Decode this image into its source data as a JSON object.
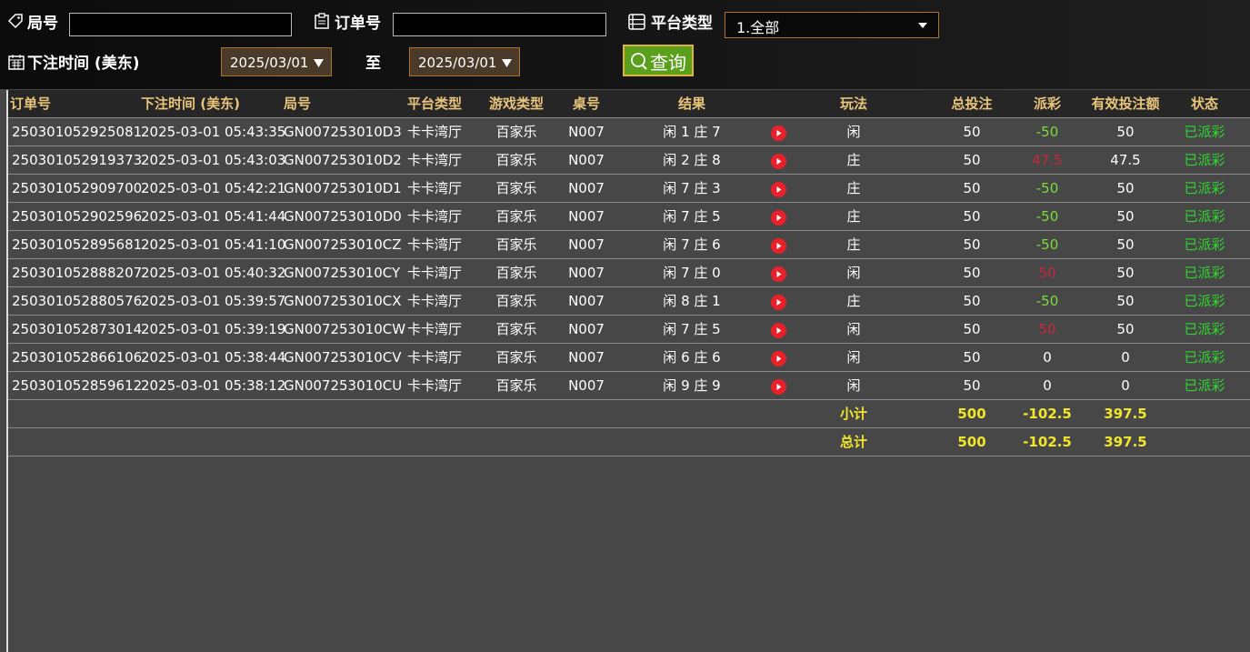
{
  "filters": {
    "round_label": "局号",
    "order_label": "订单号",
    "platform_label": "平台类型",
    "platform_value": "1.全部",
    "time_label": "下注时间 (美东)",
    "date_from": "2025/03/01",
    "to_label": "至",
    "date_to": "2025/03/01",
    "search_button": "查询"
  },
  "table": {
    "headers": [
      "订单号",
      "下注时间 (美东)",
      "局号",
      "平台类型",
      "游戏类型",
      "桌号",
      "结果",
      "玩法",
      "总投注",
      "派彩",
      "有效投注额",
      "状态"
    ],
    "rows": [
      [
        "250301052925081",
        "2025-03-01 05:43:35",
        "GN007253010D3",
        "卡卡湾厅",
        "百家乐",
        "N007",
        "闲 1 庄 7",
        "闲",
        "50",
        "-50",
        "50",
        "已派彩"
      ],
      [
        "250301052919373",
        "2025-03-01 05:43:03",
        "GN007253010D2",
        "卡卡湾厅",
        "百家乐",
        "N007",
        "闲 2 庄 8",
        "庄",
        "50",
        "47.5",
        "47.5",
        "已派彩"
      ],
      [
        "250301052909700",
        "2025-03-01 05:42:21",
        "GN007253010D1",
        "卡卡湾厅",
        "百家乐",
        "N007",
        "闲 7 庄 3",
        "庄",
        "50",
        "-50",
        "50",
        "已派彩"
      ],
      [
        "250301052902596",
        "2025-03-01 05:41:44",
        "GN007253010D0",
        "卡卡湾厅",
        "百家乐",
        "N007",
        "闲 7 庄 5",
        "庄",
        "50",
        "-50",
        "50",
        "已派彩"
      ],
      [
        "250301052895681",
        "2025-03-01 05:41:10",
        "GN007253010CZ",
        "卡卡湾厅",
        "百家乐",
        "N007",
        "闲 7 庄 6",
        "庄",
        "50",
        "-50",
        "50",
        "已派彩"
      ],
      [
        "250301052888207",
        "2025-03-01 05:40:32",
        "GN007253010CY",
        "卡卡湾厅",
        "百家乐",
        "N007",
        "闲 7 庄 0",
        "闲",
        "50",
        "50",
        "50",
        "已派彩"
      ],
      [
        "250301052880576",
        "2025-03-01 05:39:57",
        "GN007253010CX",
        "卡卡湾厅",
        "百家乐",
        "N007",
        "闲 8 庄 1",
        "庄",
        "50",
        "-50",
        "50",
        "已派彩"
      ],
      [
        "250301052873014",
        "2025-03-01 05:39:19",
        "GN007253010CW",
        "卡卡湾厅",
        "百家乐",
        "N007",
        "闲 7 庄 5",
        "闲",
        "50",
        "50",
        "50",
        "已派彩"
      ],
      [
        "250301052866106",
        "2025-03-01 05:38:44",
        "GN007253010CV",
        "卡卡湾厅",
        "百家乐",
        "N007",
        "闲 6 庄 6",
        "闲",
        "50",
        "0",
        "0",
        "已派彩"
      ],
      [
        "250301052859612",
        "2025-03-01 05:38:12",
        "GN007253010CU",
        "卡卡湾厅",
        "百家乐",
        "N007",
        "闲 9 庄 9",
        "闲",
        "50",
        "0",
        "0",
        "已派彩"
      ]
    ],
    "payout_colors": [
      "#7cdc3c",
      "#c8283c",
      "#7cdc3c",
      "#7cdc3c",
      "#7cdc3c",
      "#c8283c",
      "#7cdc3c",
      "#c8283c",
      "#ffffff",
      "#ffffff"
    ],
    "summary": [
      {
        "label": "小计",
        "total": "500",
        "payout": "-102.5",
        "valid": "397.5"
      },
      {
        "label": "总计",
        "total": "500",
        "payout": "-102.5",
        "valid": "397.5"
      }
    ]
  }
}
